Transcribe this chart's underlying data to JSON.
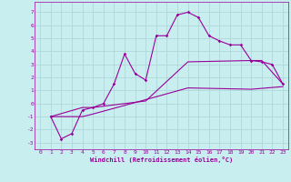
{
  "xlabel": "Windchill (Refroidissement éolien,°C)",
  "bg_color": "#c8eef0",
  "grid_color": "#b0d8da",
  "line_color": "#990099",
  "xlim": [
    -0.5,
    23.5
  ],
  "ylim": [
    -3.5,
    7.8
  ],
  "yticks": [
    -3,
    -2,
    -1,
    0,
    1,
    2,
    3,
    4,
    5,
    6,
    7
  ],
  "xticks": [
    0,
    1,
    2,
    3,
    4,
    5,
    6,
    7,
    8,
    9,
    10,
    11,
    12,
    13,
    14,
    15,
    16,
    17,
    18,
    19,
    20,
    21,
    22,
    23
  ],
  "curve1_x": [
    1,
    2,
    3,
    4,
    5,
    6,
    7,
    8,
    9,
    10,
    11,
    12,
    13,
    14,
    15,
    16,
    17,
    18,
    19,
    20,
    21,
    22,
    23
  ],
  "curve1_y": [
    -1.0,
    -2.7,
    -2.3,
    -0.5,
    -0.3,
    0.0,
    1.5,
    3.8,
    2.3,
    1.8,
    5.2,
    5.2,
    6.8,
    7.0,
    6.6,
    5.2,
    4.8,
    4.5,
    4.5,
    3.3,
    3.2,
    3.0,
    1.5
  ],
  "curve2_x": [
    1,
    4,
    5,
    10,
    14,
    20,
    21,
    23
  ],
  "curve2_y": [
    -1.0,
    -0.3,
    -0.3,
    0.2,
    3.2,
    3.3,
    3.3,
    1.5
  ],
  "curve3_x": [
    1,
    4,
    5,
    10,
    14,
    20,
    23
  ],
  "curve3_y": [
    -1.0,
    -1.0,
    -0.8,
    0.3,
    1.2,
    1.1,
    1.3
  ]
}
